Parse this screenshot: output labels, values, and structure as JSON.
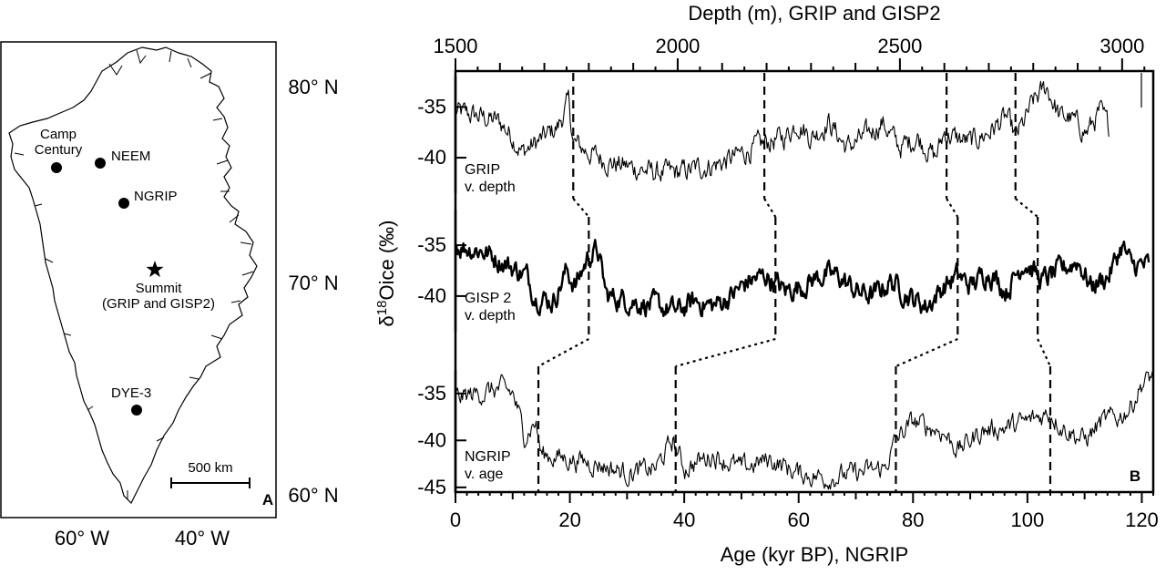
{
  "map": {
    "panel_label": "A",
    "lat_labels": [
      "80° N",
      "70° N",
      "60° N"
    ],
    "lon_labels": [
      "60° W",
      "40° W"
    ],
    "scale_label": "500 km",
    "sites": [
      {
        "name": "Camp\nCentury",
        "marker": "circle"
      },
      {
        "name": "NEEM",
        "marker": "circle"
      },
      {
        "name": "NGRIP",
        "marker": "circle"
      },
      {
        "name": "Summit\n(GRIP and GISP2)",
        "marker": "star"
      },
      {
        "name": "DYE-3",
        "marker": "circle"
      }
    ]
  },
  "chart_data": {
    "type": "line",
    "panel_label": "B",
    "top_axis": {
      "label": "Depth (m), GRIP and GISP2",
      "ticks": [
        "1500",
        "2000",
        "2500",
        "3000"
      ],
      "range_m": [
        1500,
        3070
      ]
    },
    "bottom_axis": {
      "label": "Age (kyr BP), NGRIP",
      "ticks": [
        "0",
        "20",
        "40",
        "60",
        "80",
        "100",
        "120"
      ],
      "range_kyr": [
        0,
        122
      ]
    },
    "y_axis": {
      "label": "δ18Oice (‰)",
      "label_main": "δ",
      "label_sup": "18",
      "label_rest": "Oice (‰)"
    },
    "series": [
      {
        "name": "GRIP\nv. depth",
        "x_unit": "m",
        "ticks": [
          "-35",
          "-40"
        ],
        "ylim": [
          -43.5,
          -32
        ],
        "anchors": [
          [
            1500,
            -35.5
          ],
          [
            1560,
            -36
          ],
          [
            1600,
            -36.5
          ],
          [
            1630,
            -38
          ],
          [
            1650,
            -39.5
          ],
          [
            1700,
            -38
          ],
          [
            1730,
            -37
          ],
          [
            1755,
            -34.5
          ],
          [
            1765,
            -38.5
          ],
          [
            1800,
            -39.5
          ],
          [
            1850,
            -40.5
          ],
          [
            1900,
            -41
          ],
          [
            1950,
            -41.5
          ],
          [
            2000,
            -41.5
          ],
          [
            2050,
            -41
          ],
          [
            2100,
            -40.5
          ],
          [
            2150,
            -39.5
          ],
          [
            2200,
            -38.5
          ],
          [
            2240,
            -38
          ],
          [
            2270,
            -36.5
          ],
          [
            2300,
            -38
          ],
          [
            2340,
            -36.5
          ],
          [
            2380,
            -39
          ],
          [
            2420,
            -38
          ],
          [
            2460,
            -36.5
          ],
          [
            2500,
            -39
          ],
          [
            2540,
            -38
          ],
          [
            2580,
            -40
          ],
          [
            2600,
            -37.5
          ],
          [
            2620,
            -38
          ],
          [
            2660,
            -38.5
          ],
          [
            2700,
            -37.5
          ],
          [
            2740,
            -36
          ],
          [
            2760,
            -38
          ],
          [
            2780,
            -36.5
          ],
          [
            2800,
            -34.5
          ],
          [
            2830,
            -33
          ],
          [
            2860,
            -36
          ],
          [
            2880,
            -36
          ],
          [
            2920,
            -37.5
          ],
          [
            2950,
            -35.5
          ],
          [
            2970,
            -37
          ]
        ],
        "boundaries_m": [
          1765,
          2195,
          2605,
          2760
        ]
      },
      {
        "name": "GISP 2\nv. depth",
        "x_unit": "m",
        "ticks": [
          "-35",
          "-40"
        ],
        "ylim": [
          -43.5,
          -31.5
        ],
        "anchors": [
          [
            1500,
            -35
          ],
          [
            1560,
            -35.5
          ],
          [
            1620,
            -37
          ],
          [
            1660,
            -38
          ],
          [
            1680,
            -40
          ],
          [
            1720,
            -40.5
          ],
          [
            1750,
            -37.5
          ],
          [
            1770,
            -39
          ],
          [
            1800,
            -36
          ],
          [
            1820,
            -35.5
          ],
          [
            1840,
            -40
          ],
          [
            1900,
            -40.5
          ],
          [
            1950,
            -41
          ],
          [
            2000,
            -41.5
          ],
          [
            2040,
            -40.5
          ],
          [
            2080,
            -41
          ],
          [
            2120,
            -40
          ],
          [
            2160,
            -38.5
          ],
          [
            2200,
            -38
          ],
          [
            2240,
            -39.5
          ],
          [
            2280,
            -39
          ],
          [
            2320,
            -38
          ],
          [
            2360,
            -38
          ],
          [
            2400,
            -39.5
          ],
          [
            2440,
            -40
          ],
          [
            2480,
            -38.5
          ],
          [
            2520,
            -40
          ],
          [
            2560,
            -41
          ],
          [
            2600,
            -39
          ],
          [
            2630,
            -38
          ],
          [
            2660,
            -39
          ],
          [
            2700,
            -37.5
          ],
          [
            2740,
            -39.5
          ],
          [
            2780,
            -36.5
          ],
          [
            2820,
            -38.5
          ],
          [
            2860,
            -37.5
          ],
          [
            2900,
            -36.5
          ],
          [
            2930,
            -39
          ],
          [
            2970,
            -38
          ],
          [
            3000,
            -35
          ],
          [
            3020,
            -37
          ],
          [
            3060,
            -37
          ]
        ],
        "boundaries_m": [
          1800,
          2220,
          2630,
          2810
        ]
      },
      {
        "name": "NGRIP\nv. age",
        "x_unit": "kyr",
        "ticks": [
          "-35",
          "-40",
          "-45"
        ],
        "ylim": [
          -45.5,
          -32.5
        ],
        "anchors": [
          [
            0,
            -35.5
          ],
          [
            4,
            -35
          ],
          [
            8,
            -34.5
          ],
          [
            10,
            -35
          ],
          [
            11,
            -37
          ],
          [
            12,
            -39.5
          ],
          [
            14,
            -38
          ],
          [
            15,
            -41.5
          ],
          [
            20,
            -42
          ],
          [
            25,
            -42.5
          ],
          [
            30,
            -43.5
          ],
          [
            35,
            -43
          ],
          [
            38,
            -40
          ],
          [
            40,
            -43
          ],
          [
            45,
            -41.5
          ],
          [
            50,
            -43
          ],
          [
            55,
            -42
          ],
          [
            60,
            -43.5
          ],
          [
            65,
            -44
          ],
          [
            70,
            -43.5
          ],
          [
            75,
            -43
          ],
          [
            77,
            -40
          ],
          [
            80,
            -38
          ],
          [
            85,
            -39
          ],
          [
            88,
            -41
          ],
          [
            92,
            -39
          ],
          [
            97,
            -38.5
          ],
          [
            100,
            -38
          ],
          [
            104,
            -37
          ],
          [
            106,
            -38.5
          ],
          [
            110,
            -40
          ],
          [
            113,
            -38
          ],
          [
            116,
            -37.5
          ],
          [
            118,
            -36.5
          ],
          [
            120,
            -34
          ],
          [
            122,
            -33
          ]
        ],
        "boundaries_kyr": [
          14.5,
          38.5,
          77,
          104
        ]
      }
    ],
    "grid": false,
    "legend": "none"
  }
}
